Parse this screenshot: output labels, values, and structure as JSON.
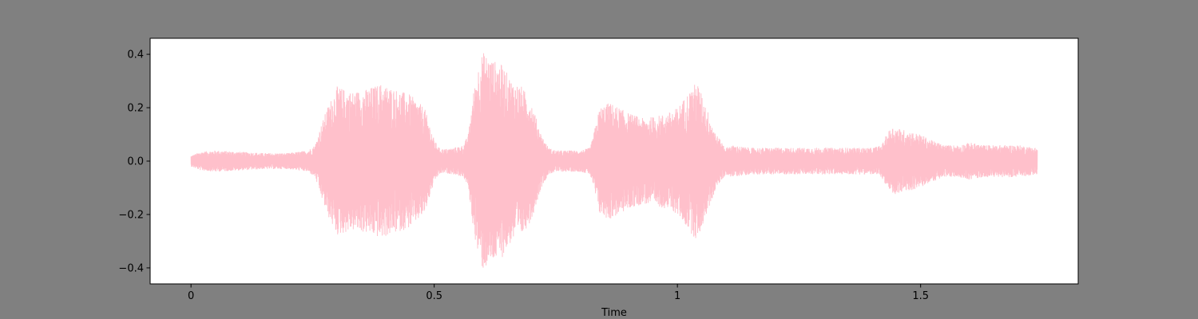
{
  "colors": {
    "figure_background": "#808080",
    "plot_background": "#ffffff",
    "waveform": "#ffc0cb",
    "axis": "#000000"
  },
  "chart_data": {
    "type": "line",
    "title": "",
    "xlabel": "Time",
    "ylabel": "",
    "xlim": [
      -0.084,
      1.824
    ],
    "ylim": [
      -0.46,
      0.46
    ],
    "x_ticks": [
      0,
      0.5,
      1,
      1.5
    ],
    "x_tick_labels": [
      "0",
      "0.5",
      "1",
      "1.5"
    ],
    "y_ticks": [
      -0.4,
      -0.2,
      0.0,
      0.2,
      0.4
    ],
    "y_tick_labels": [
      "−0.4",
      "−0.2",
      "0.0",
      "0.2",
      "0.4"
    ],
    "grid": false,
    "legend": "none",
    "duration": 1.74,
    "envelope": {
      "time": [
        0,
        0.02,
        0.05,
        0.1,
        0.15,
        0.2,
        0.24,
        0.255,
        0.265,
        0.28,
        0.3,
        0.33,
        0.36,
        0.39,
        0.42,
        0.45,
        0.48,
        0.5,
        0.51,
        0.52,
        0.54,
        0.56,
        0.57,
        0.58,
        0.59,
        0.6,
        0.62,
        0.64,
        0.66,
        0.68,
        0.7,
        0.72,
        0.735,
        0.75,
        0.8,
        0.82,
        0.825,
        0.84,
        0.86,
        0.88,
        0.9,
        0.93,
        0.96,
        0.98,
        1.0,
        1.02,
        1.04,
        1.06,
        1.08,
        1.1,
        1.11,
        1.15,
        1.2,
        1.25,
        1.3,
        1.35,
        1.4,
        1.42,
        1.43,
        1.44,
        1.46,
        1.48,
        1.5,
        1.52,
        1.55,
        1.58,
        1.6,
        1.63,
        1.66,
        1.7,
        1.74
      ],
      "amplitude": [
        0.02,
        0.035,
        0.04,
        0.035,
        0.03,
        0.03,
        0.04,
        0.06,
        0.12,
        0.2,
        0.28,
        0.26,
        0.27,
        0.29,
        0.27,
        0.25,
        0.2,
        0.08,
        0.05,
        0.045,
        0.05,
        0.06,
        0.1,
        0.25,
        0.35,
        0.41,
        0.38,
        0.36,
        0.3,
        0.28,
        0.22,
        0.1,
        0.05,
        0.04,
        0.04,
        0.05,
        0.08,
        0.2,
        0.22,
        0.2,
        0.18,
        0.16,
        0.17,
        0.18,
        0.2,
        0.25,
        0.3,
        0.2,
        0.1,
        0.05,
        0.06,
        0.05,
        0.05,
        0.05,
        0.05,
        0.05,
        0.05,
        0.06,
        0.1,
        0.13,
        0.12,
        0.11,
        0.1,
        0.08,
        0.06,
        0.06,
        0.07,
        0.06,
        0.06,
        0.06,
        0.05
      ]
    }
  }
}
